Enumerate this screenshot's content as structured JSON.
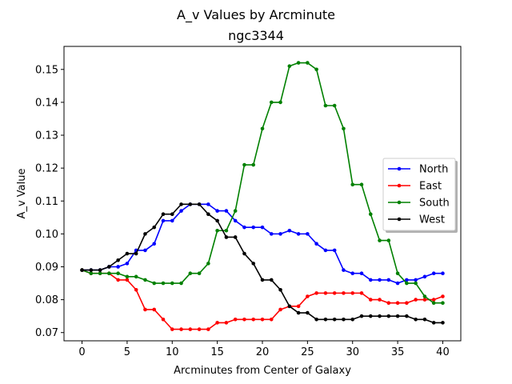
{
  "chart_data": {
    "type": "line",
    "title": "A_v Values by Arcminute",
    "subtitle": "ngc3344",
    "xlabel": "Arcminutes from Center of Galaxy",
    "ylabel": "A_v Value",
    "xlim": [
      -2,
      42
    ],
    "ylim": [
      0.0675,
      0.157
    ],
    "xticks": [
      0,
      5,
      10,
      15,
      20,
      25,
      30,
      35,
      40
    ],
    "yticks": [
      0.07,
      0.08,
      0.09,
      0.1,
      0.11,
      0.12,
      0.13,
      0.14,
      0.15
    ],
    "ytick_labels": [
      "0.07",
      "0.08",
      "0.09",
      "0.10",
      "0.11",
      "0.12",
      "0.13",
      "0.14",
      "0.15"
    ],
    "grid": false,
    "legend_position": "center-right",
    "x": [
      0,
      1,
      2,
      3,
      4,
      5,
      6,
      7,
      8,
      9,
      10,
      11,
      12,
      13,
      14,
      15,
      16,
      17,
      18,
      19,
      20,
      21,
      22,
      23,
      24,
      25,
      26,
      27,
      28,
      29,
      30,
      31,
      32,
      33,
      34,
      35,
      36,
      37,
      38,
      39,
      40
    ],
    "series": [
      {
        "name": "North",
        "color": "#0000ff",
        "values": [
          0.089,
          0.089,
          0.089,
          0.09,
          0.09,
          0.091,
          0.095,
          0.095,
          0.097,
          0.104,
          0.104,
          0.107,
          0.109,
          0.109,
          0.109,
          0.107,
          0.107,
          0.104,
          0.102,
          0.102,
          0.102,
          0.1,
          0.1,
          0.101,
          0.1,
          0.1,
          0.097,
          0.095,
          0.095,
          0.089,
          0.088,
          0.088,
          0.086,
          0.086,
          0.086,
          0.085,
          0.086,
          0.086,
          0.087,
          0.088,
          0.088
        ]
      },
      {
        "name": "East",
        "color": "#ff0000",
        "values": [
          0.089,
          0.088,
          0.088,
          0.088,
          0.086,
          0.086,
          0.083,
          0.077,
          0.077,
          0.074,
          0.071,
          0.071,
          0.071,
          0.071,
          0.071,
          0.073,
          0.073,
          0.074,
          0.074,
          0.074,
          0.074,
          0.074,
          0.077,
          0.078,
          0.078,
          0.081,
          0.082,
          0.082,
          0.082,
          0.082,
          0.082,
          0.082,
          0.08,
          0.08,
          0.079,
          0.079,
          0.079,
          0.08,
          0.08,
          0.08,
          0.081
        ]
      },
      {
        "name": "South",
        "color": "#008000",
        "values": [
          0.089,
          0.088,
          0.088,
          0.088,
          0.088,
          0.087,
          0.087,
          0.086,
          0.085,
          0.085,
          0.085,
          0.085,
          0.088,
          0.088,
          0.091,
          0.101,
          0.101,
          0.107,
          0.121,
          0.121,
          0.132,
          0.14,
          0.14,
          0.151,
          0.152,
          0.152,
          0.15,
          0.139,
          0.139,
          0.132,
          0.115,
          0.115,
          0.106,
          0.098,
          0.098,
          0.088,
          0.085,
          0.085,
          0.081,
          0.079,
          0.079
        ]
      },
      {
        "name": "West",
        "color": "#000000",
        "values": [
          0.089,
          0.089,
          0.089,
          0.09,
          0.092,
          0.094,
          0.094,
          0.1,
          0.102,
          0.106,
          0.106,
          0.109,
          0.109,
          0.109,
          0.106,
          0.104,
          0.099,
          0.099,
          0.094,
          0.091,
          0.086,
          0.086,
          0.083,
          0.078,
          0.076,
          0.076,
          0.074,
          0.074,
          0.074,
          0.074,
          0.074,
          0.075,
          0.075,
          0.075,
          0.075,
          0.075,
          0.075,
          0.074,
          0.074,
          0.073,
          0.073
        ]
      }
    ]
  }
}
